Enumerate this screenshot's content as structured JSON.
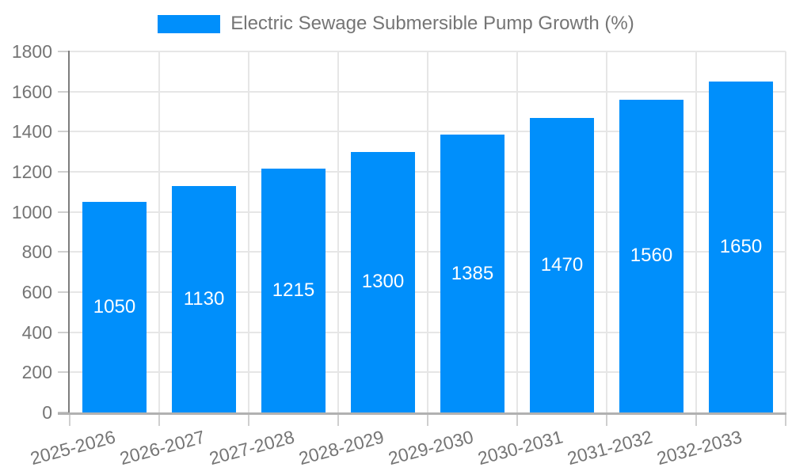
{
  "legend": {
    "series_label": "Electric Sewage Submersible Pump Growth (%)"
  },
  "chart_data": {
    "type": "bar",
    "title": "Electric Sewage Submersible Pump Growth (%)",
    "series_name": "Electric Sewage Submersible Pump Growth (%)",
    "categories": [
      "2025-2026",
      "2026-2027",
      "2027-2028",
      "2028-2029",
      "2029-2030",
      "2030-2031",
      "2031-2032",
      "2032-2033"
    ],
    "values": [
      1050,
      1130,
      1215,
      1300,
      1385,
      1470,
      1560,
      1650
    ],
    "value_labels": [
      "1050",
      "1130",
      "1215",
      "1300",
      "1385",
      "1470",
      "1560",
      "1650"
    ],
    "yticks": [
      "0",
      "200",
      "400",
      "600",
      "800",
      "1000",
      "1200",
      "1400",
      "1600",
      "1800"
    ],
    "ylim": [
      0,
      1800
    ],
    "ytick_step": 200,
    "xlabel": "",
    "ylabel": "",
    "grid": true,
    "legend_position": "top-center",
    "value_label_position": "inside-center",
    "x_label_rotation_deg": -15,
    "colors": {
      "bar": "#008FFB",
      "value_label": "#ffffff",
      "axis_text": "#757575",
      "gridline": "#e6e6e6",
      "tick": "#cfcfcf",
      "y_axis_line": "#7d7d7d",
      "x_axis_line": "#b1b1b1",
      "background": "#ffffff"
    }
  }
}
